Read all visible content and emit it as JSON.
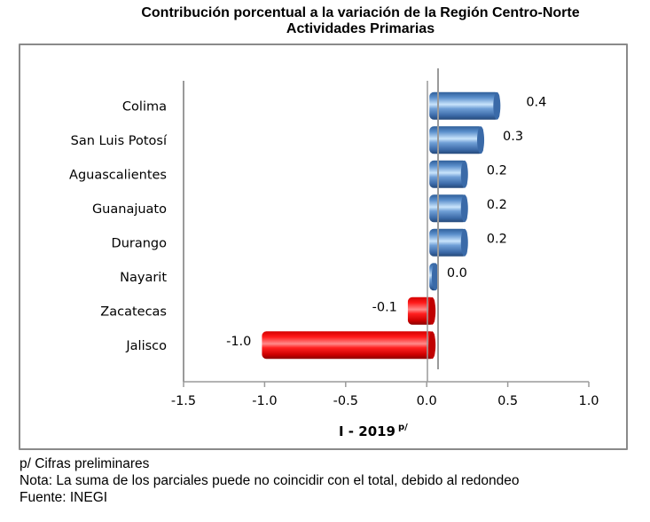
{
  "title": {
    "line1": "Contribución porcentual a la variación de la Región Centro-Norte",
    "line2": "Actividades Primarias"
  },
  "chart_data": {
    "type": "bar",
    "orientation": "horizontal",
    "title": "Contribución porcentual a la variación de la Región Centro-Norte — Actividades Primarias",
    "categories": [
      "Colima",
      "San Luis Potosí",
      "Aguascalientes",
      "Guanajuato",
      "Durango",
      "Nayarit",
      "Zacatecas",
      "Jalisco"
    ],
    "values": [
      0.4,
      0.3,
      0.2,
      0.2,
      0.2,
      0.0,
      -0.1,
      -1.0
    ],
    "value_labels": [
      "0.4",
      "0.3",
      "0.2",
      "0.2",
      "0.2",
      "0.0",
      "-0.1",
      "-1.0"
    ],
    "xlabel": "I - 2019",
    "xlabel_superscript": "p/",
    "ylabel": "",
    "xlim": [
      -1.5,
      1.0
    ],
    "xticks": [
      "-1.5",
      "-1.0",
      "-0.5",
      "0.0",
      "0.5",
      "1.0"
    ],
    "xtick_values": [
      -1.5,
      -1.0,
      -0.5,
      0.0,
      0.5,
      1.0
    ],
    "grid": false,
    "legend": "none",
    "colors": {
      "positive": "#4a7ebb",
      "negative": "#ff0000"
    }
  },
  "notes": {
    "line1": "p/ Cifras preliminares",
    "line2": "Nota: La suma de los parciales puede no coincidir con el total, debido al redondeo",
    "line3": "Fuente: INEGI"
  }
}
